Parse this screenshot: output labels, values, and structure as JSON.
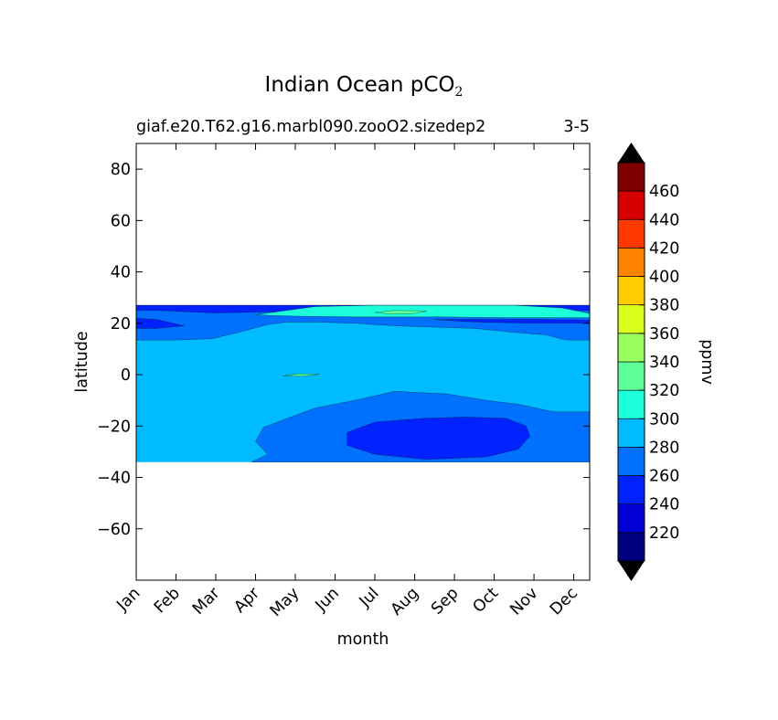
{
  "chart_data": {
    "type": "contourf",
    "title": {
      "main": "Indian Ocean pCO",
      "sub": "2"
    },
    "subtitle_left": "giaf.e20.T62.g16.marbl090.zooO2.sizedep2",
    "subtitle_right": "3-5",
    "xlabel": "month",
    "ylabel": "latitude",
    "x_categories": [
      "Jan",
      "Feb",
      "Mar",
      "Apr",
      "May",
      "Jun",
      "Jul",
      "Aug",
      "Sep",
      "Oct",
      "Nov",
      "Dec"
    ],
    "xlim": [
      0,
      11.4
    ],
    "ylim": [
      -80,
      90
    ],
    "y_ticks": [
      80,
      60,
      40,
      20,
      0,
      -20,
      -40,
      -60
    ],
    "y_tick_labels": [
      "80",
      "60",
      "40",
      "20",
      "0",
      "−20",
      "−40",
      "−60"
    ],
    "data_lat_range": [
      -34,
      27
    ],
    "colorbar": {
      "label": "ppmv",
      "extend": "both",
      "levels": [
        200,
        220,
        240,
        260,
        280,
        300,
        320,
        340,
        360,
        380,
        400,
        420,
        440,
        460,
        480
      ],
      "tick_values": [
        220,
        240,
        260,
        280,
        300,
        320,
        340,
        360,
        380,
        400,
        420,
        440,
        460
      ],
      "colors": [
        "#00007f",
        "#0000d6",
        "#0022ff",
        "#0070ff",
        "#00bbff",
        "#1cffdb",
        "#5eff99",
        "#99ff5e",
        "#dbff1c",
        "#ffcc00",
        "#ff8200",
        "#ff3800",
        "#d60000",
        "#7f0000"
      ],
      "under_color": "#000000",
      "over_color": "#000000"
    },
    "regions": [
      {
        "name": "background-280-300",
        "value_range": [
          280,
          300
        ],
        "color": "#00bbff"
      },
      {
        "name": "north-cap-260-280",
        "value_range": [
          260,
          280
        ],
        "color": "#0070ff"
      },
      {
        "name": "north-band-240-260",
        "value_range": [
          240,
          260
        ],
        "color": "#0022ff"
      },
      {
        "name": "north-green-300-320",
        "value_range": [
          300,
          320
        ],
        "color": "#1cffdb"
      },
      {
        "name": "south-260-280",
        "value_range": [
          260,
          280
        ],
        "color": "#0070ff"
      },
      {
        "name": "south-240-260",
        "value_range": [
          240,
          260
        ],
        "color": "#0022ff"
      },
      {
        "name": "islet-320-340",
        "value_range": [
          320,
          340
        ],
        "color": "#5eff99"
      }
    ]
  }
}
